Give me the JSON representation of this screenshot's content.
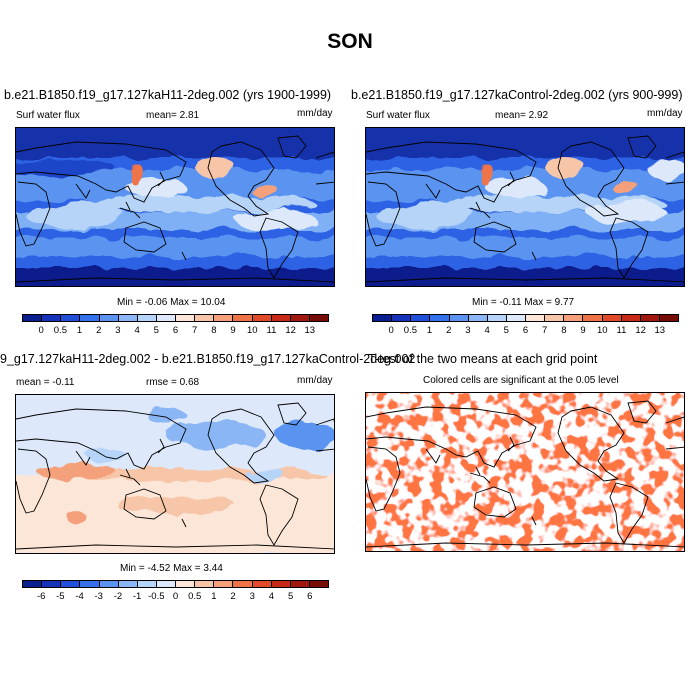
{
  "figure": {
    "title": "SON"
  },
  "panels": {
    "p1": {
      "header": "b.e21.B1850.f19_g17.127kaH11-2deg.002 (yrs 1900-1999)",
      "left_label": "Surf water flux",
      "mean_label": "mean=  2.81",
      "units": "mm/day",
      "minmax": "Min =  -0.06 Max =  10.04"
    },
    "p2": {
      "header": "b.e21.B1850.f19_g17.127kaControl-2deg.002 (yrs 900-999)",
      "left_label": "Surf water flux",
      "mean_label": "mean=  2.92",
      "units": "mm/day",
      "minmax": "Min =  -0.11 Max =  9.77"
    },
    "p3": {
      "header": "9_g17.127kaH11-2deg.002 - b.e21.B1850.f19_g17.127kaControl-2deg.002",
      "left_label": "mean =  -0.11",
      "mean_label": "rmse =  0.68",
      "units": "mm/day",
      "minmax": "Min =  -4.52 Max =  3.44"
    },
    "p4": {
      "header": "T-test of the two means at each grid point",
      "subheader": "Colored cells are significant at the 0.05 level"
    }
  },
  "colorbars": {
    "abs": {
      "labels": [
        "0",
        "0.5",
        "1",
        "2",
        "3",
        "4",
        "5",
        "6",
        "7",
        "8",
        "9",
        "10",
        "11",
        "12",
        "13"
      ],
      "colors": [
        "#0a1f8f",
        "#1433b8",
        "#2050d8",
        "#3470ea",
        "#5a94f0",
        "#8bb6f5",
        "#b6d3f8",
        "#dde9fb",
        "#fbe6d8",
        "#f7c6a8",
        "#f4a07a",
        "#ee7448",
        "#e04a28",
        "#c62a17",
        "#a1180e",
        "#780d08"
      ]
    },
    "diff": {
      "labels": [
        "-6",
        "-5",
        "-4",
        "-3",
        "-2",
        "-1",
        "-0.5",
        "0",
        "0.5",
        "1",
        "2",
        "3",
        "4",
        "5",
        "6"
      ],
      "colors": [
        "#0a1f8f",
        "#1433b8",
        "#2050d8",
        "#3470ea",
        "#5a94f0",
        "#8bb6f5",
        "#b6d3f8",
        "#dde9fb",
        "#fbe6d8",
        "#f7c6a8",
        "#f4a07a",
        "#ee7448",
        "#e04a28",
        "#c62a17",
        "#a1180e",
        "#780d08"
      ]
    }
  }
}
